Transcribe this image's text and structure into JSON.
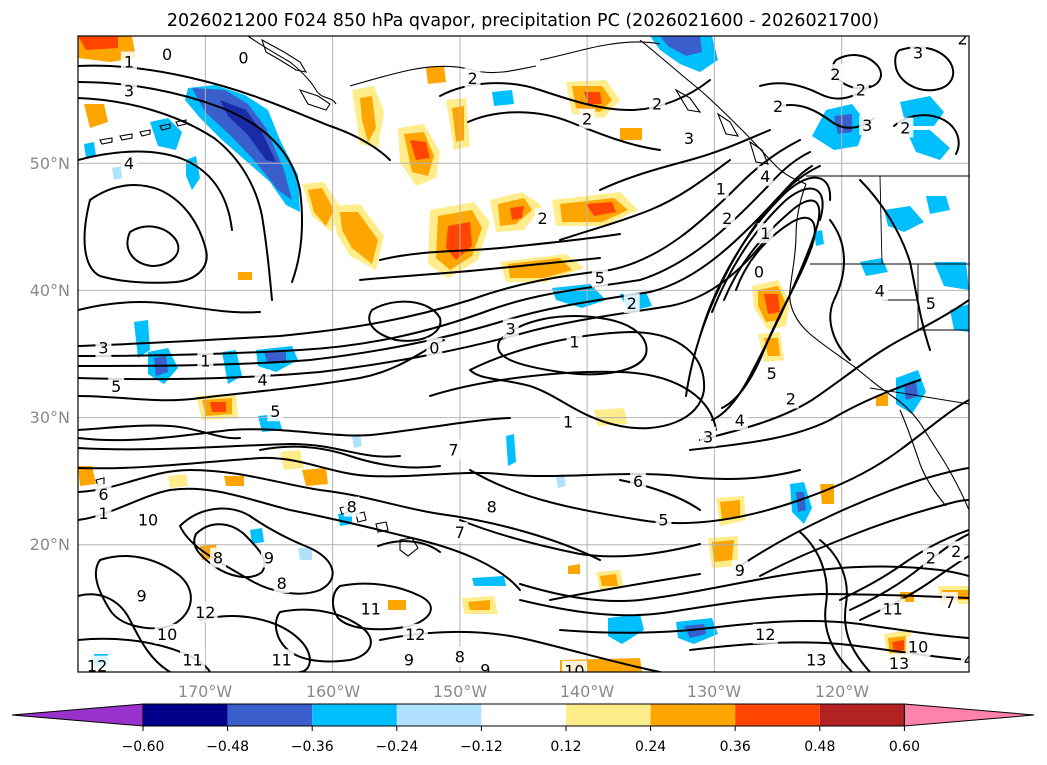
{
  "chart_data": {
    "type": "map-contour",
    "title": "2026021200 F024 850 hPa qvapor, precipitation PC (2026021600 - 2026021700)",
    "lat_labels": [
      "50°N",
      "40°N",
      "30°N",
      "20°N"
    ],
    "lon_labels": [
      "170°W",
      "160°W",
      "150°W",
      "140°W",
      "130°W",
      "120°W"
    ],
    "extent": {
      "lon_min": -180,
      "lon_max": -110,
      "lat_min": 10,
      "lat_max": 60
    },
    "grid": true,
    "colorbar": {
      "orientation": "horizontal",
      "extend": "both",
      "ticks": [
        "−0.60",
        "−0.48",
        "−0.36",
        "−0.24",
        "−0.12",
        "0.12",
        "0.24",
        "0.36",
        "0.48",
        "0.60"
      ],
      "colors": [
        "#9932cc",
        "#00008b",
        "#3a5fcd",
        "#00bfff",
        "#b0e2ff",
        "#ffffff",
        "#ffec8b",
        "#ffa500",
        "#ff4500",
        "#b22222",
        "#ff82ab"
      ]
    },
    "contour_labels": [
      {
        "text": "0",
        "lon": -173.0,
        "lat": 58.6
      },
      {
        "text": "1",
        "lon": -176.0,
        "lat": 58.0
      },
      {
        "text": "3",
        "lon": -176.0,
        "lat": 55.7
      },
      {
        "text": "4",
        "lon": -176.0,
        "lat": 50.0
      },
      {
        "text": "0",
        "lon": -167.0,
        "lat": 58.3
      },
      {
        "text": "2",
        "lon": -149.0,
        "lat": 56.7
      },
      {
        "text": "2",
        "lon": -140.0,
        "lat": 53.5
      },
      {
        "text": "2",
        "lon": -134.5,
        "lat": 54.7
      },
      {
        "text": "3",
        "lon": -132.0,
        "lat": 52.0
      },
      {
        "text": "2",
        "lon": -125.0,
        "lat": 54.5
      },
      {
        "text": "2",
        "lon": -120.5,
        "lat": 57.0
      },
      {
        "text": "2",
        "lon": -118.5,
        "lat": 55.8
      },
      {
        "text": "3",
        "lon": -118.0,
        "lat": 53.0
      },
      {
        "text": "3",
        "lon": -114.0,
        "lat": 58.7
      },
      {
        "text": "2",
        "lon": -115.0,
        "lat": 52.8
      },
      {
        "text": "2",
        "lon": -110.5,
        "lat": 59.8
      },
      {
        "text": "2",
        "lon": -143.5,
        "lat": 45.7
      },
      {
        "text": "1",
        "lon": -129.5,
        "lat": 48.0
      },
      {
        "text": "2",
        "lon": -129.0,
        "lat": 45.7
      },
      {
        "text": "4",
        "lon": -126.0,
        "lat": 49.0
      },
      {
        "text": "1",
        "lon": -126.0,
        "lat": 44.5
      },
      {
        "text": "0",
        "lon": -126.5,
        "lat": 41.5
      },
      {
        "text": "5",
        "lon": -139.0,
        "lat": 41.0
      },
      {
        "text": "2",
        "lon": -136.5,
        "lat": 39.0
      },
      {
        "text": "3",
        "lon": -146.0,
        "lat": 37.0
      },
      {
        "text": "1",
        "lon": -141.0,
        "lat": 36.0
      },
      {
        "text": "0",
        "lon": -152.0,
        "lat": 35.5
      },
      {
        "text": "1",
        "lon": -170.0,
        "lat": 34.5
      },
      {
        "text": "3",
        "lon": -178.0,
        "lat": 35.5
      },
      {
        "text": "5",
        "lon": -177.0,
        "lat": 32.5
      },
      {
        "text": "4",
        "lon": -165.5,
        "lat": 33.0
      },
      {
        "text": "5",
        "lon": -164.5,
        "lat": 30.5
      },
      {
        "text": "1",
        "lon": -141.5,
        "lat": 29.7
      },
      {
        "text": "3",
        "lon": -130.5,
        "lat": 28.5
      },
      {
        "text": "4",
        "lon": -128.0,
        "lat": 29.8
      },
      {
        "text": "2",
        "lon": -124.0,
        "lat": 31.5
      },
      {
        "text": "5",
        "lon": -125.5,
        "lat": 33.5
      },
      {
        "text": "4",
        "lon": -117.0,
        "lat": 40.0
      },
      {
        "text": "5",
        "lon": -113.0,
        "lat": 39.0
      },
      {
        "text": "7",
        "lon": -150.5,
        "lat": 27.5
      },
      {
        "text": "6",
        "lon": -136.0,
        "lat": 25.0
      },
      {
        "text": "8",
        "lon": -147.5,
        "lat": 23.0
      },
      {
        "text": "5",
        "lon": -134.0,
        "lat": 22.0
      },
      {
        "text": "7",
        "lon": -150.0,
        "lat": 21.0
      },
      {
        "text": "8",
        "lon": -158.5,
        "lat": 23.0
      },
      {
        "text": "6",
        "lon": -178.0,
        "lat": 24.0
      },
      {
        "text": "1",
        "lon": -178.0,
        "lat": 22.5
      },
      {
        "text": "10",
        "lon": -174.5,
        "lat": 22.0
      },
      {
        "text": "8",
        "lon": -169.0,
        "lat": 19.0
      },
      {
        "text": "9",
        "lon": -165.0,
        "lat": 19.0
      },
      {
        "text": "8",
        "lon": -164.0,
        "lat": 17.0
      },
      {
        "text": "9",
        "lon": -175.0,
        "lat": 16.0
      },
      {
        "text": "12",
        "lon": -170.0,
        "lat": 14.7
      },
      {
        "text": "10",
        "lon": -173.0,
        "lat": 13.0
      },
      {
        "text": "11",
        "lon": -157.0,
        "lat": 15.0
      },
      {
        "text": "12",
        "lon": -153.5,
        "lat": 13.0
      },
      {
        "text": "9",
        "lon": -128.0,
        "lat": 18.0
      },
      {
        "text": "11",
        "lon": -116.0,
        "lat": 15.0
      },
      {
        "text": "12",
        "lon": -126.0,
        "lat": 13.0
      },
      {
        "text": "12",
        "lon": -178.5,
        "lat": 10.5
      },
      {
        "text": "11",
        "lon": -171.0,
        "lat": 11.0
      },
      {
        "text": "11",
        "lon": -164.0,
        "lat": 11.0
      },
      {
        "text": "9",
        "lon": -154.0,
        "lat": 11.0
      },
      {
        "text": "8",
        "lon": -150.0,
        "lat": 11.2
      },
      {
        "text": "9",
        "lon": -148.0,
        "lat": 10.2
      },
      {
        "text": "10",
        "lon": -141.0,
        "lat": 10.1
      },
      {
        "text": "13",
        "lon": -122.0,
        "lat": 11.0
      },
      {
        "text": "13",
        "lon": -115.5,
        "lat": 10.7
      },
      {
        "text": "2",
        "lon": -113.0,
        "lat": 19.0
      },
      {
        "text": "7",
        "lon": -111.5,
        "lat": 15.5
      },
      {
        "text": "2",
        "lon": -111.0,
        "lat": 19.5
      },
      {
        "text": "10",
        "lon": -114.0,
        "lat": 12.0
      },
      {
        "text": "4",
        "lon": -110.0,
        "lat": 11.0
      }
    ]
  }
}
